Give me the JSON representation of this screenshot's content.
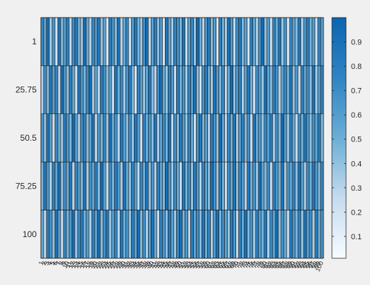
{
  "chart_data": {
    "type": "heatmap",
    "title": "",
    "xlabel": "",
    "ylabel": "",
    "colormap": "blues",
    "color_low": "#f7fbff",
    "color_high": "#0a64b0",
    "cell_edge_color": "#1a1a1a",
    "y_categories": [
      "1",
      "25.75",
      "50.5",
      "75.25",
      "100"
    ],
    "x_categories": [
      "1",
      "2",
      "3",
      "4",
      "5",
      "6",
      "7",
      "8",
      "9",
      "10",
      "11",
      "12",
      "13",
      "14",
      "15",
      "16",
      "17",
      "18",
      "19",
      "20",
      "21",
      "22",
      "23",
      "24",
      "25",
      "26",
      "27",
      "28",
      "29",
      "30",
      "31",
      "32",
      "33",
      "34",
      "35",
      "36",
      "37",
      "38",
      "39",
      "40",
      "41",
      "42",
      "43",
      "44",
      "45",
      "46",
      "47",
      "48",
      "49",
      "50",
      "51",
      "52",
      "53",
      "54",
      "55",
      "56",
      "57",
      "58",
      "59",
      "60",
      "61",
      "62",
      "63",
      "64",
      "65",
      "66",
      "67",
      "68",
      "69",
      "70",
      "71",
      "72",
      "73",
      "74",
      "75",
      "76",
      "77",
      "78",
      "79",
      "80",
      "81",
      "82",
      "83",
      "84",
      "85",
      "86",
      "87",
      "88",
      "89",
      "90",
      "91",
      "92",
      "93",
      "94",
      "95",
      "96",
      "97",
      "98",
      "99",
      "100"
    ],
    "colorbar": {
      "range": [
        0.01,
        1.0
      ],
      "ticks": [
        "0.1",
        "0.2",
        "0.3",
        "0.4",
        "0.5",
        "0.6",
        "0.7",
        "0.8",
        "0.9"
      ]
    },
    "values": [
      [
        0.72,
        0.55,
        0.91,
        0.33,
        0.64,
        0.18,
        0.87,
        0.42,
        0.59,
        0.76,
        0.25,
        0.68,
        0.81,
        0.47,
        0.36,
        0.93,
        0.52,
        0.29,
        0.71,
        0.62,
        0.84,
        0.39,
        0.57,
        0.15,
        0.78,
        0.66,
        0.44,
        0.89,
        0.31,
        0.53,
        0.74,
        0.22,
        0.61,
        0.85,
        0.48,
        0.37,
        0.69,
        0.92,
        0.27,
        0.58,
        0.79,
        0.41,
        0.63,
        0.19,
        0.86,
        0.54,
        0.34,
        0.75,
        0.67,
        0.46,
        0.88,
        0.23,
        0.56,
        0.73,
        0.38,
        0.95,
        0.51,
        0.28,
        0.65,
        0.82,
        0.43,
        0.6,
        0.17,
        0.77,
        0.49,
        0.35,
        0.9,
        0.62,
        0.26,
        0.7,
        0.83,
        0.45,
        0.57,
        0.21,
        0.8,
        0.53,
        0.32,
        0.68,
        0.94,
        0.4,
        0.61,
        0.24,
        0.76,
        0.5,
        0.87,
        0.36,
        0.66,
        0.13,
        0.72,
        0.55,
        0.42,
        0.85,
        0.3,
        0.63,
        0.78,
        0.47,
        0.59,
        0.2,
        0.74,
        0.58
      ],
      [
        0.31,
        0.68,
        0.44,
        0.82,
        0.57,
        0.73,
        0.26,
        0.9,
        0.61,
        0.39,
        0.77,
        0.52,
        0.18,
        0.85,
        0.63,
        0.46,
        0.7,
        0.92,
        0.34,
        0.56,
        0.28,
        0.8,
        0.67,
        0.41,
        0.59,
        0.23,
        0.88,
        0.5,
        0.72,
        0.36,
        0.64,
        0.83,
        0.47,
        0.19,
        0.75,
        0.6,
        0.38,
        0.55,
        0.86,
        0.43,
        0.29,
        0.69,
        0.91,
        0.53,
        0.37,
        0.78,
        0.62,
        0.25,
        0.81,
        0.48,
        0.66,
        0.33,
        0.74,
        0.58,
        0.89,
        0.42,
        0.21,
        0.65,
        0.79,
        0.51,
        0.35,
        0.87,
        0.6,
        0.45,
        0.71,
        0.27,
        0.54,
        0.94,
        0.4,
        0.63,
        0.76,
        0.32,
        0.58,
        0.84,
        0.49,
        0.22,
        0.7,
        0.61,
        0.37,
        0.93,
        0.55,
        0.44,
        0.8,
        0.66,
        0.3,
        0.57,
        0.73,
        0.48,
        0.86,
        0.39,
        0.62,
        0.25,
        0.77,
        0.53,
        0.68,
        0.41,
        0.9,
        0.34,
        0.59,
        0.75
      ],
      [
        0.64,
        0.39,
        0.86,
        0.58,
        0.22,
        0.71,
        0.49,
        0.35,
        0.8,
        0.62,
        0.45,
        0.93,
        0.57,
        0.3,
        0.68,
        0.76,
        0.41,
        0.55,
        0.88,
        0.26,
        0.63,
        0.47,
        0.74,
        0.36,
        0.9,
        0.52,
        0.67,
        0.29,
        0.83,
        0.59,
        0.43,
        0.7,
        0.38,
        0.85,
        0.61,
        0.24,
        0.78,
        0.5,
        0.65,
        0.42,
        0.87,
        0.33,
        0.56,
        0.72,
        0.48,
        0.91,
        0.27,
        0.69,
        0.44,
        0.81,
        0.6,
        0.37,
        0.75,
        0.53,
        0.2,
        0.66,
        0.84,
        0.46,
        0.58,
        0.31,
        0.79,
        0.64,
        0.4,
        0.92,
        0.55,
        0.28,
        0.73,
        0.5,
        0.86,
        0.35,
        0.61,
        0.77,
        0.43,
        0.68,
        0.25,
        0.89,
        0.52,
        0.63,
        0.38,
        0.74,
        0.57,
        0.82,
        0.33,
        0.69,
        0.45,
        0.95,
        0.6,
        0.36,
        0.78,
        0.51,
        0.23,
        0.71,
        0.48,
        0.85,
        0.62,
        0.4,
        0.67,
        0.54,
        0.81,
        0.44
      ],
      [
        0.47,
        0.83,
        0.61,
        0.29,
        0.76,
        0.54,
        0.91,
        0.38,
        0.67,
        0.5,
        0.84,
        0.27,
        0.72,
        0.59,
        0.44,
        0.87,
        0.33,
        0.66,
        0.52,
        0.79,
        0.41,
        0.93,
        0.58,
        0.24,
        0.7,
        0.46,
        0.81,
        0.62,
        0.35,
        0.89,
        0.55,
        0.42,
        0.77,
        0.6,
        0.28,
        0.73,
        0.51,
        0.86,
        0.4,
        0.64,
        0.32,
        0.78,
        0.57,
        0.45,
        0.92,
        0.63,
        0.36,
        0.71,
        0.53,
        0.26,
        0.85,
        0.48,
        0.69,
        0.39,
        0.82,
        0.61,
        0.3,
        0.75,
        0.56,
        0.43,
        0.9,
        0.65,
        0.37,
        0.8,
        0.49,
        0.23,
        0.68,
        0.54,
        0.87,
        0.42,
        0.74,
        0.6,
        0.31,
        0.83,
        0.5,
        0.66,
        0.38,
        0.94,
        0.56,
        0.44,
        0.71,
        0.27,
        0.79,
        0.62,
        0.47,
        0.88,
        0.35,
        0.65,
        0.53,
        0.76,
        0.4,
        0.91,
        0.58,
        0.33,
        0.7,
        0.49,
        0.84,
        0.61,
        0.45,
        0.73
      ],
      [
        0.53,
        0.26,
        0.78,
        0.65,
        0.4,
        0.88,
        0.57,
        0.21,
        0.73,
        0.46,
        0.62,
        0.9,
        0.35,
        0.69,
        0.81,
        0.48,
        0.6,
        0.3,
        0.76,
        0.55,
        0.92,
        0.43,
        0.67,
        0.84,
        0.37,
        0.59,
        0.74,
        0.28,
        0.85,
        0.51,
        0.66,
        0.39,
        0.8,
        0.57,
        0.93,
        0.45,
        0.7,
        0.32,
        0.61,
        0.87,
        0.52,
        0.24,
        0.76,
        0.64,
        0.41,
        0.83,
        0.58,
        0.36,
        0.72,
        0.9,
        0.47,
        0.63,
        0.29,
        0.8,
        0.55,
        0.68,
        0.42,
        0.86,
        0.5,
        0.74,
        0.33,
        0.61,
        0.89,
        0.46,
        0.7,
        0.57,
        0.38,
        0.82,
        0.64,
        0.27,
        0.77,
        0.53,
        0.91,
        0.44,
        0.66,
        0.35,
        0.79,
        0.6,
        0.48,
        0.85,
        0.31,
        0.72,
        0.56,
        0.94,
        0.41,
        0.67,
        0.52,
        0.25,
        0.81,
        0.63,
        0.45,
        0.76,
        0.38,
        0.88,
        0.57,
        0.69,
        0.34,
        0.8,
        0.5,
        0.65
      ]
    ]
  }
}
